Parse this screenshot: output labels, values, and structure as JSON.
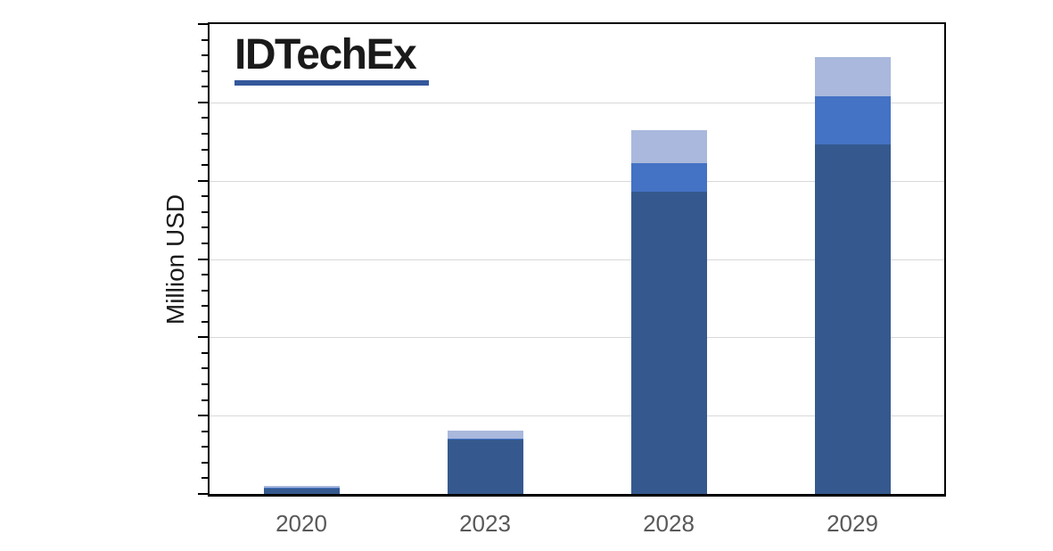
{
  "figure": {
    "background": "#ffffff"
  },
  "logo": {
    "text": "IDTechEx",
    "text_color": "#1a1a1a",
    "underline_color": "#35589b"
  },
  "axis_style": {
    "axis_color": "#000000",
    "gridline_color": "#d9d9d9",
    "tick_color": "#000000",
    "x_label_color": "#595959",
    "y_title_color": "#1a1a1a"
  },
  "chart_data": {
    "type": "bar",
    "stacked": true,
    "title": "",
    "xlabel": "",
    "ylabel": "Million USD",
    "categories": [
      "2020",
      "2023",
      "2028",
      "2029"
    ],
    "series": [
      {
        "name": "bottom-dark-blue-series",
        "color": "#35598e",
        "values": [
          7,
          70,
          386,
          446
        ]
      },
      {
        "name": "middle-medium-blue-series",
        "color": "#4472c4",
        "values": [
          1,
          1,
          36,
          62
        ]
      },
      {
        "name": "top-light-blue-series",
        "color": "#a9b8dc",
        "values": [
          2,
          10,
          42,
          50
        ]
      }
    ],
    "ylim": [
      0,
      600
    ],
    "y_major_unit": 100,
    "y_minor_unit": 20,
    "y_tick_labels_visible": false,
    "grid": "horizontal-major",
    "legend_position": "none"
  }
}
